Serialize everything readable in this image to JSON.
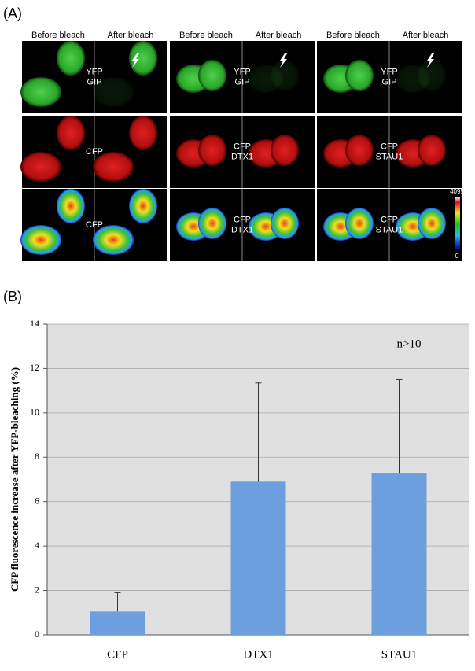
{
  "panel_a": {
    "label": "(A)",
    "columns": [
      {
        "headers": [
          "Before bleach",
          "After bleach"
        ],
        "labels": [
          [
            "YFP",
            "GIP"
          ],
          [
            "CFP"
          ],
          [
            "CFP"
          ]
        ]
      },
      {
        "headers": [
          "Before bleach",
          "After bleach"
        ],
        "labels": [
          [
            "YFP",
            "GIP"
          ],
          [
            "CFP",
            "DTX1"
          ],
          [
            "CFP",
            "DTX1"
          ]
        ]
      },
      {
        "headers": [
          "Before bleach",
          "After bleach"
        ],
        "labels": [
          [
            "YFP",
            "GIP"
          ],
          [
            "CFP",
            "STAU1"
          ],
          [
            "CFP",
            "STAU1"
          ]
        ]
      }
    ],
    "colorbar": {
      "max": "4095",
      "min": "0"
    }
  },
  "chart_data": {
    "type": "bar",
    "panel_label": "(B)",
    "y_label": "CFP fluorescence increase after YFP-bleaching (%)",
    "annotation": "n>10",
    "categories": [
      "CFP",
      "DTX1",
      "STAU1"
    ],
    "values": [
      1.05,
      6.9,
      7.3
    ],
    "errors": [
      0.85,
      4.45,
      4.2
    ],
    "color": "#6b9fdd",
    "ylim": [
      0,
      14
    ],
    "yticks": [
      0,
      2,
      4,
      6,
      8,
      10,
      12,
      14
    ],
    "grid": true
  }
}
